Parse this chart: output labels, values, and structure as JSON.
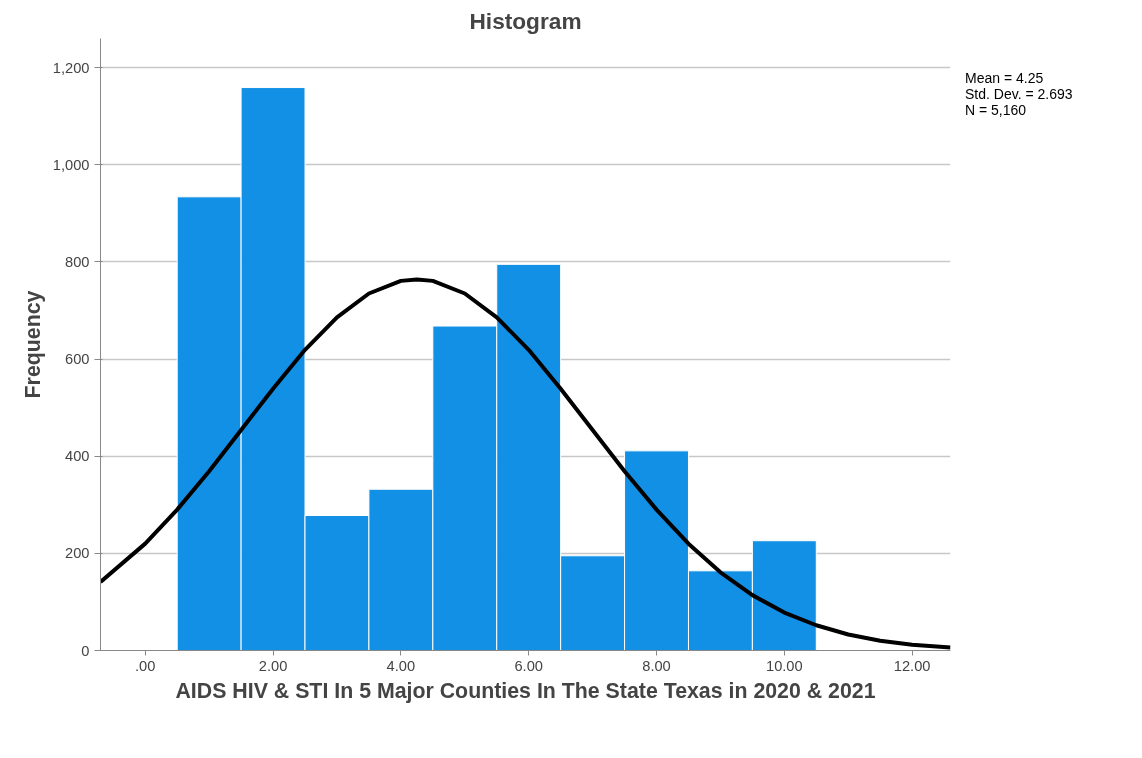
{
  "chart_data": {
    "type": "histogram",
    "title": "Histogram",
    "xlabel": "AIDS HIV & STI In 5 Major Counties In The State Texas in 2020 & 2021",
    "ylabel": "Frequency",
    "bins": [
      0.5,
      1.5,
      2.5,
      3.5,
      4.5,
      5.5,
      6.5,
      7.5,
      8.5,
      9.5,
      10.5
    ],
    "values": [
      934,
      1159,
      278,
      332,
      668,
      795,
      195,
      411,
      164,
      226
    ],
    "color": "#1290e6",
    "series": [
      {
        "type": "line",
        "color": "#000000",
        "x": [
          -0.7,
          0,
          0.5,
          1,
          1.5,
          2,
          2.5,
          3,
          3.5,
          4,
          4.25,
          4.5,
          5,
          5.5,
          6,
          6.5,
          7,
          7.5,
          8,
          8.5,
          9,
          9.5,
          10,
          10.5,
          11,
          11.5,
          12,
          12.6
        ],
        "values": [
          141,
          220,
          290,
          369,
          454,
          539,
          619,
          686,
          735,
          761,
          764,
          761,
          735,
          686,
          619,
          539,
          454,
          369,
          290,
          220,
          161,
          114,
          78,
          52,
          33,
          20,
          12,
          6
        ]
      }
    ],
    "xlim": [
      -0.7,
      12.6
    ],
    "xticks": [
      {
        "value": 0,
        "label": ".00"
      },
      {
        "value": 2,
        "label": "2.00"
      },
      {
        "value": 4,
        "label": "4.00"
      },
      {
        "value": 6,
        "label": "6.00"
      },
      {
        "value": 8,
        "label": "8.00"
      },
      {
        "value": 10,
        "label": "10.00"
      },
      {
        "value": 12,
        "label": "12.00"
      }
    ],
    "ylim": [
      0,
      1260
    ],
    "yticks": [
      0,
      200,
      400,
      600,
      800,
      {
        "value": 1000,
        "label": "1,000"
      },
      {
        "value": 1200,
        "label": "1,200"
      }
    ],
    "grid": "y",
    "annotations": [
      "Mean = 4.25",
      "Std. Dev. = 2.693",
      "N = 5,160"
    ]
  }
}
